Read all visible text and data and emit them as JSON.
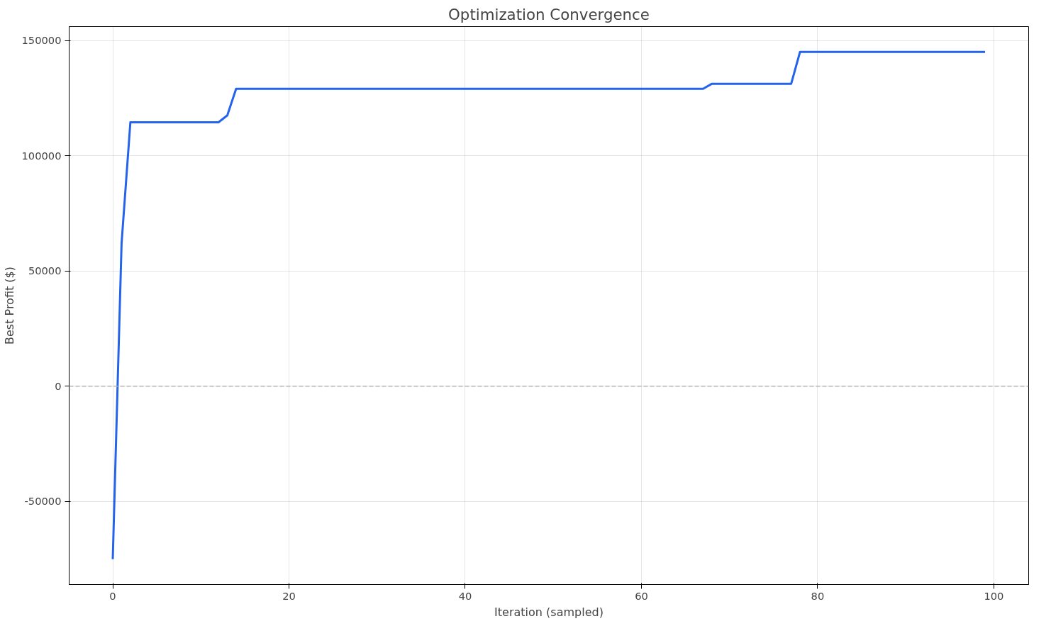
{
  "chart_data": {
    "type": "line",
    "title": "Optimization Convergence",
    "xlabel": "Iteration (sampled)",
    "ylabel": "Best Profit ($)",
    "series": [
      {
        "color": "#2563eb",
        "x": [
          0,
          1,
          2,
          12,
          13,
          14,
          67,
          68,
          77,
          78,
          99
        ],
        "values": [
          -75000,
          62000,
          114500,
          114500,
          117500,
          129000,
          129000,
          131200,
          131200,
          145000,
          145000
        ]
      }
    ],
    "xlim": [
      -4.95,
      103.95
    ],
    "xticks": [
      0,
      20,
      40,
      60,
      80,
      100
    ],
    "ylim": [
      -86000,
      156000
    ],
    "yticks": [
      -50000,
      0,
      50000,
      100000,
      150000
    ],
    "ref_lines": [
      {
        "axis": "y",
        "value": 0,
        "color": "#b3b3b3",
        "line_style": "dashed"
      }
    ],
    "grid": true,
    "line_style": "solid"
  }
}
